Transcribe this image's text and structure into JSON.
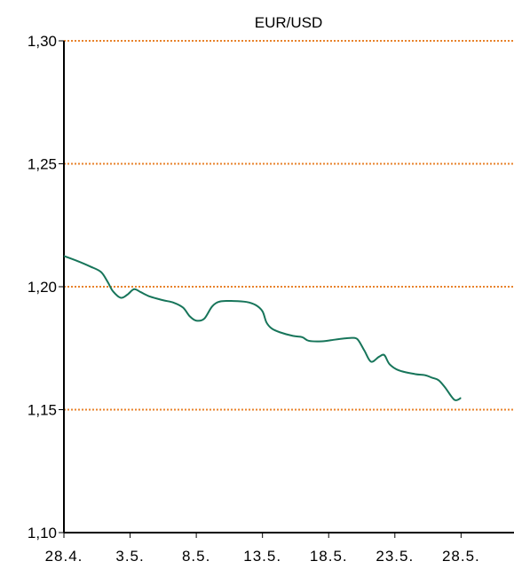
{
  "chart_data": {
    "type": "line",
    "title": "EUR/USD",
    "xlabel": "",
    "ylabel": "",
    "x_tick_labels": [
      "28.4.",
      "3.5.",
      "8.5.",
      "13.5.",
      "18.5.",
      "23.5.",
      "28.5."
    ],
    "y_tick_labels": [
      "1,30",
      "1,25",
      "1,20",
      "1,15",
      "1,10"
    ],
    "y_ticks": [
      1.3,
      1.25,
      1.2,
      1.15,
      1.1
    ],
    "ylim": [
      1.1,
      1.3
    ],
    "grid": "horizontal dotted",
    "x_range_days": [
      0,
      34
    ],
    "series": [
      {
        "values_x_days": [
          0,
          1,
          2,
          2.8,
          3.3,
          3.7,
          4.3,
          4.8,
          5.3,
          5.8,
          6.5,
          7.5,
          8.3,
          9,
          9.5,
          10,
          10.6,
          11.2,
          11.8,
          12.8,
          13.8,
          14.5,
          15,
          15.3,
          15.7,
          16.3,
          17.3,
          18,
          18.5,
          19.5,
          20.5,
          21.3,
          21.8,
          22.2,
          22.7,
          23.2,
          23.8,
          24.2,
          24.6,
          25.3,
          26.5,
          27.3,
          27.8,
          28.3,
          28.8,
          29.5,
          30
        ],
        "values_y": [
          1.2125,
          1.2105,
          1.2082,
          1.206,
          1.202,
          1.1982,
          1.1955,
          1.1968,
          1.199,
          1.1978,
          1.196,
          1.1945,
          1.1935,
          1.1915,
          1.188,
          1.1862,
          1.187,
          1.192,
          1.194,
          1.1942,
          1.1938,
          1.1925,
          1.19,
          1.1855,
          1.183,
          1.1815,
          1.18,
          1.1795,
          1.178,
          1.1778,
          1.1785,
          1.179,
          1.1792,
          1.1785,
          1.174,
          1.1695,
          1.1715,
          1.1722,
          1.1685,
          1.166,
          1.1645,
          1.164,
          1.163,
          1.162,
          1.159,
          1.154,
          1.1548
        ]
      }
    ],
    "colors": {
      "line": "#17755a",
      "grid": "#e8832c",
      "axis": "#000000"
    }
  }
}
